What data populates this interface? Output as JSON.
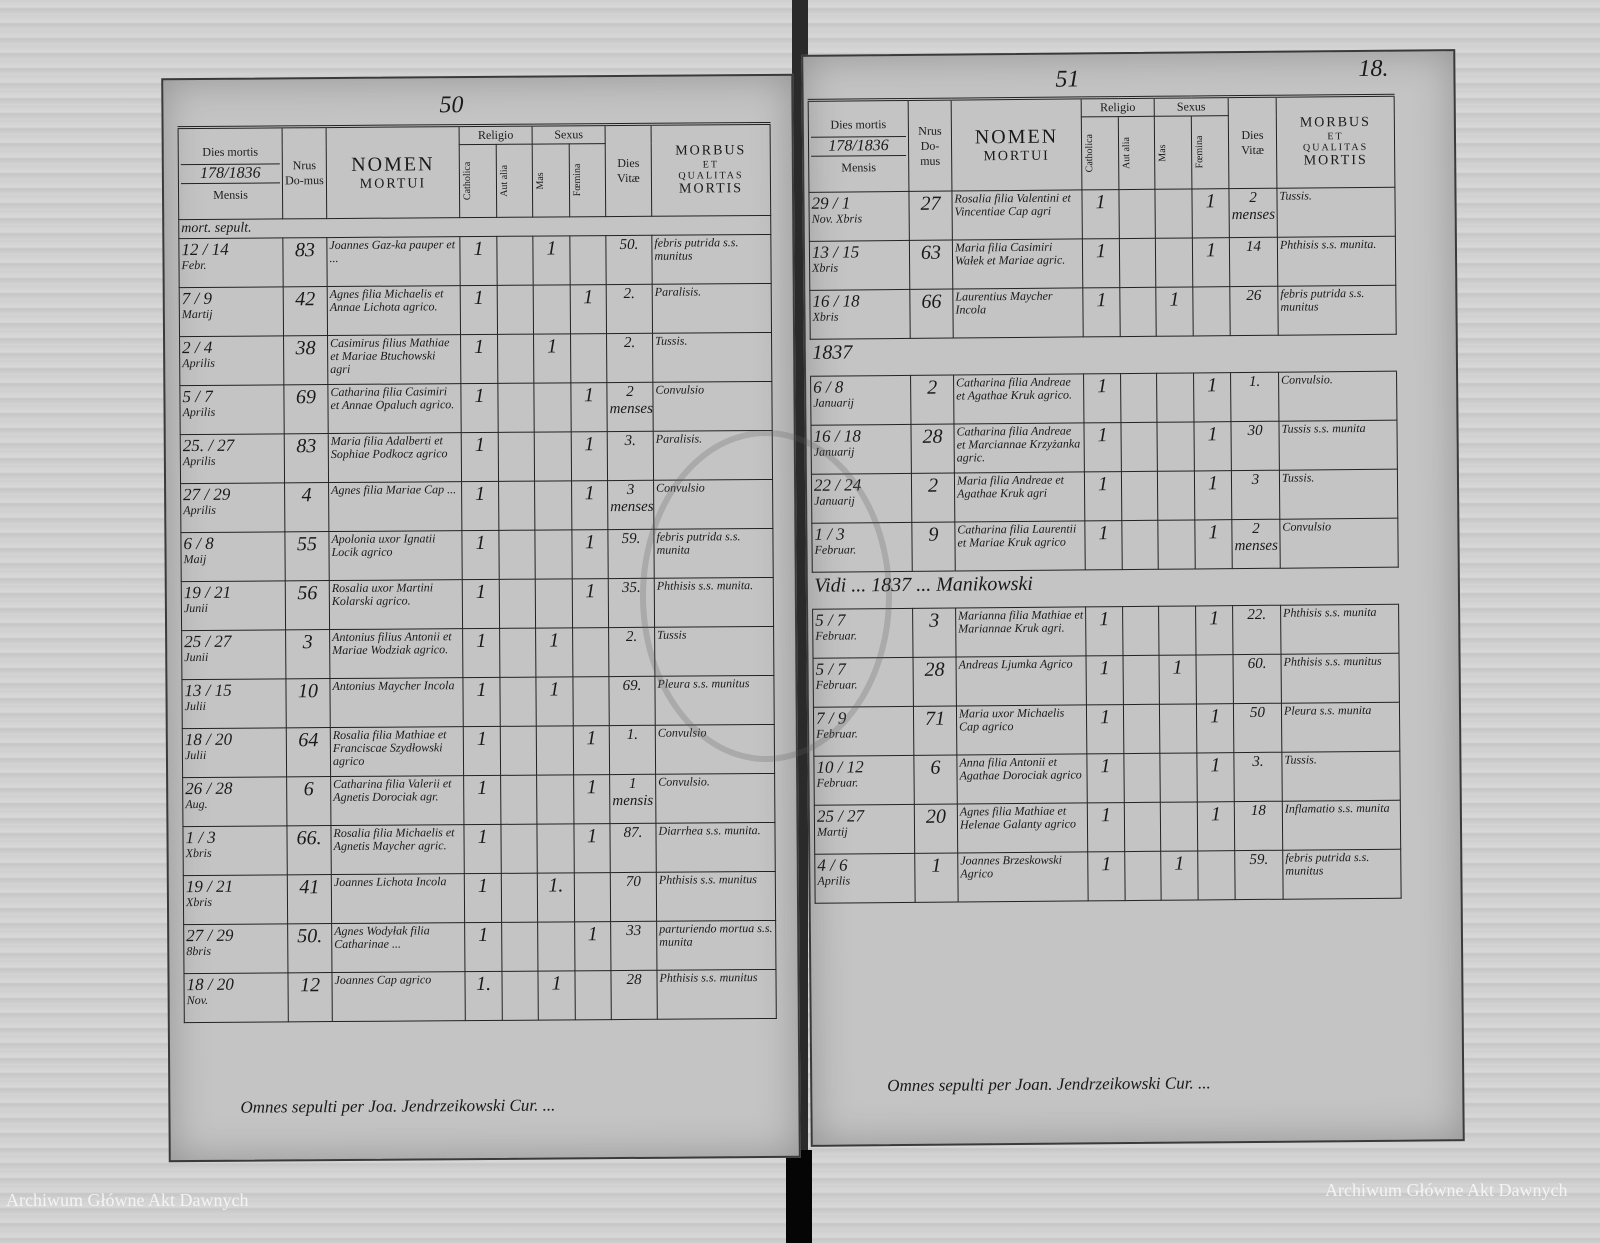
{
  "header": {
    "dies_mortis": "Dies mortis",
    "year": "178/1836",
    "mensis": "Mensis",
    "nrus": "Nrus",
    "domus": "Do-mus",
    "nomen": "NOMEN",
    "mortui": "MORTUI",
    "religio": "Religio",
    "sexus": "Sexus",
    "catholica": "Catholica",
    "aut_alia": "Aut alia",
    "mas": "Mas",
    "foemina": "Fœmina",
    "dies_vitae": "Dies Vitæ",
    "morbus": "MORBUS",
    "et": "ET",
    "qualitas": "QUALITAS",
    "mortis": "MORTIS"
  },
  "left_page": {
    "page_number": "50",
    "subheader": "mort. sepult.",
    "rows": [
      {
        "d1": "12",
        "d2": "14",
        "month": "Febr.",
        "house": "83",
        "name": "Joannes Gaz-ka pauper et ...",
        "cath": "1",
        "mas": "1",
        "fem": "",
        "vitae": "50.",
        "morbus": "febris putrida s.s. munitus"
      },
      {
        "d1": "7",
        "d2": "9",
        "month": "Martij",
        "house": "42",
        "name": "Agnes filia Michaelis et Annae Lichota agrico.",
        "cath": "1",
        "mas": "",
        "fem": "1",
        "vitae": "2.",
        "morbus": "Paralisis."
      },
      {
        "d1": "2",
        "d2": "4",
        "month": "Aprilis",
        "house": "38",
        "name": "Casimirus filius Mathiae et Mariae Btuchowski agri",
        "cath": "1",
        "mas": "1",
        "fem": "",
        "vitae": "2.",
        "morbus": "Tussis."
      },
      {
        "d1": "5",
        "d2": "7",
        "month": "Aprilis",
        "house": "69",
        "name": "Catharina filia Casimiri et Annae Opaluch agrico.",
        "cath": "1",
        "mas": "",
        "fem": "1",
        "vitae": "2 menses",
        "morbus": "Convulsio"
      },
      {
        "d1": "25.",
        "d2": "27",
        "month": "Aprilis",
        "house": "83",
        "name": "Maria filia Adalberti et Sophiae Podkocz agrico",
        "cath": "1",
        "mas": "",
        "fem": "1",
        "vitae": "3.",
        "morbus": "Paralisis."
      },
      {
        "d1": "27",
        "d2": "29",
        "month": "Aprilis",
        "house": "4",
        "name": "Agnes filia Mariae Cap ...",
        "cath": "1",
        "mas": "",
        "fem": "1",
        "vitae": "3 menses",
        "morbus": "Convulsio"
      },
      {
        "d1": "6",
        "d2": "8",
        "month": "Maij",
        "house": "55",
        "name": "Apolonia uxor Ignatii Locik agrico",
        "cath": "1",
        "mas": "",
        "fem": "1",
        "vitae": "59.",
        "morbus": "febris putrida s.s. munita"
      },
      {
        "d1": "19",
        "d2": "21",
        "month": "Junii",
        "house": "56",
        "name": "Rosalia uxor Martini Kolarski agrico.",
        "cath": "1",
        "mas": "",
        "fem": "1",
        "vitae": "35.",
        "morbus": "Phthisis s.s. munita."
      },
      {
        "d1": "25",
        "d2": "27",
        "month": "Junii",
        "house": "3",
        "name": "Antonius filius Antonii et Mariae Wodziak agrico.",
        "cath": "1",
        "mas": "1",
        "fem": "",
        "vitae": "2.",
        "morbus": "Tussis"
      },
      {
        "d1": "13",
        "d2": "15",
        "month": "Julii",
        "house": "10",
        "name": "Antonius Maycher Incola",
        "cath": "1",
        "mas": "1",
        "fem": "",
        "vitae": "69.",
        "morbus": "Pleura s.s. munitus"
      },
      {
        "d1": "18",
        "d2": "20",
        "month": "Julii",
        "house": "64",
        "name": "Rosalia filia Mathiae et Franciscae Szydłowski agrico",
        "cath": "1",
        "mas": "",
        "fem": "1",
        "vitae": "1.",
        "morbus": "Convulsio"
      },
      {
        "d1": "26",
        "d2": "28",
        "month": "Aug.",
        "house": "6",
        "name": "Catharina filia Valerii et Agnetis Dorociak agr.",
        "cath": "1",
        "mas": "",
        "fem": "1",
        "vitae": "1 mensis",
        "morbus": "Convulsio."
      },
      {
        "d1": "1",
        "d2": "3",
        "month": "Xbris",
        "house": "66.",
        "name": "Rosalia filia Michaelis et Agnetis Maycher agric.",
        "cath": "1",
        "mas": "",
        "fem": "1",
        "vitae": "87.",
        "morbus": "Diarrhea s.s. munita."
      },
      {
        "d1": "19",
        "d2": "21",
        "month": "Xbris",
        "house": "41",
        "name": "Joannes Lichota Incola",
        "cath": "1",
        "mas": "1.",
        "fem": "",
        "vitae": "70",
        "morbus": "Phthisis s.s. munitus"
      },
      {
        "d1": "27",
        "d2": "29",
        "month": "8bris",
        "house": "50.",
        "name": "Agnes Wodyłak filia Catharinae ...",
        "cath": "1",
        "mas": "",
        "fem": "1",
        "vitae": "33",
        "morbus": "parturiendo mortua s.s. munita"
      },
      {
        "d1": "18",
        "d2": "20",
        "month": "Nov.",
        "house": "12",
        "name": "Joannes Cap agrico",
        "cath": "1.",
        "mas": "1",
        "fem": "",
        "vitae": "28",
        "morbus": "Phthisis s.s. munitus"
      }
    ],
    "footer": "Omnes sepulti per Joa. Jendrzeikowski Cur. ..."
  },
  "right_page": {
    "page_number": "51",
    "folio_number": "18.",
    "rows": [
      {
        "d1": "29",
        "d2": "1",
        "month": "Nov. Xbris",
        "house": "27",
        "name": "Rosalia filia Valentini et Vincentiae Cap agri",
        "cath": "1",
        "mas": "",
        "fem": "1",
        "vitae": "2 menses",
        "morbus": "Tussis."
      },
      {
        "d1": "13",
        "d2": "15",
        "month": "Xbris",
        "house": "63",
        "name": "Maria filia Casimiri Wałek et Mariae agric.",
        "cath": "1",
        "mas": "",
        "fem": "1",
        "vitae": "14",
        "morbus": "Phthisis s.s. munita."
      },
      {
        "d1": "16",
        "d2": "18",
        "month": "Xbris",
        "house": "66",
        "name": "Laurentius Maycher Incola",
        "cath": "1",
        "mas": "1",
        "fem": "",
        "vitae": "26",
        "morbus": "febris putrida s.s. munitus"
      },
      {
        "note": "1837"
      },
      {
        "d1": "6",
        "d2": "8",
        "month": "Januarij",
        "house": "2",
        "name": "Catharina filia Andreae et Agathae Kruk agrico.",
        "cath": "1",
        "mas": "",
        "fem": "1",
        "vitae": "1.",
        "morbus": "Convulsio."
      },
      {
        "d1": "16",
        "d2": "18",
        "month": "Januarij",
        "house": "28",
        "name": "Catharina filia Andreae et Marciannae Krzyżanka agric.",
        "cath": "1",
        "mas": "",
        "fem": "1",
        "vitae": "30",
        "morbus": "Tussis s.s. munita"
      },
      {
        "d1": "22",
        "d2": "24",
        "month": "Januarij",
        "house": "2",
        "name": "Maria filia Andreae et Agathae Kruk agri",
        "cath": "1",
        "mas": "",
        "fem": "1",
        "vitae": "3",
        "morbus": "Tussis."
      },
      {
        "d1": "1",
        "d2": "3",
        "month": "Februar.",
        "house": "9",
        "name": "Catharina filia Laurentii et Mariae Kruk agrico",
        "cath": "1",
        "mas": "",
        "fem": "1",
        "vitae": "2 menses",
        "morbus": "Convulsio"
      },
      {
        "note": "Vidi ... 1837 ... Manikowski"
      },
      {
        "d1": "5",
        "d2": "7",
        "month": "Februar.",
        "house": "3",
        "name": "Marianna filia Mathiae et Mariannae Kruk agri.",
        "cath": "1",
        "mas": "",
        "fem": "1",
        "vitae": "22.",
        "morbus": "Phthisis s.s. munita"
      },
      {
        "d1": "5",
        "d2": "7",
        "month": "Februar.",
        "house": "28",
        "name": "Andreas Ljumka Agrico",
        "cath": "1",
        "mas": "1",
        "fem": "",
        "vitae": "60.",
        "morbus": "Phthisis s.s. munitus"
      },
      {
        "d1": "7",
        "d2": "9",
        "month": "Februar.",
        "house": "71",
        "name": "Maria uxor Michaelis Cap agrico",
        "cath": "1",
        "mas": "",
        "fem": "1",
        "vitae": "50",
        "morbus": "Pleura s.s. munita"
      },
      {
        "d1": "10",
        "d2": "12",
        "month": "Februar.",
        "house": "6",
        "name": "Anna filia Antonii et Agathae Dorociak agrico",
        "cath": "1",
        "mas": "",
        "fem": "1",
        "vitae": "3.",
        "morbus": "Tussis."
      },
      {
        "d1": "25",
        "d2": "27",
        "month": "Martij",
        "house": "20",
        "name": "Agnes filia Mathiae et Helenae Galanty agrico",
        "cath": "1",
        "mas": "",
        "fem": "1",
        "vitae": "18",
        "morbus": "Inflamatio s.s. munita"
      },
      {
        "d1": "4",
        "d2": "6",
        "month": "Aprilis",
        "house": "1",
        "name": "Joannes Brzeskowski Agrico",
        "cath": "1",
        "mas": "1",
        "fem": "",
        "vitae": "59.",
        "morbus": "febris putrida s.s. munitus"
      }
    ],
    "footer": "Omnes sepulti per Joan. Jendrzeikowski Cur. ..."
  },
  "watermark": "Archiwum Główne Akt Dawnych"
}
